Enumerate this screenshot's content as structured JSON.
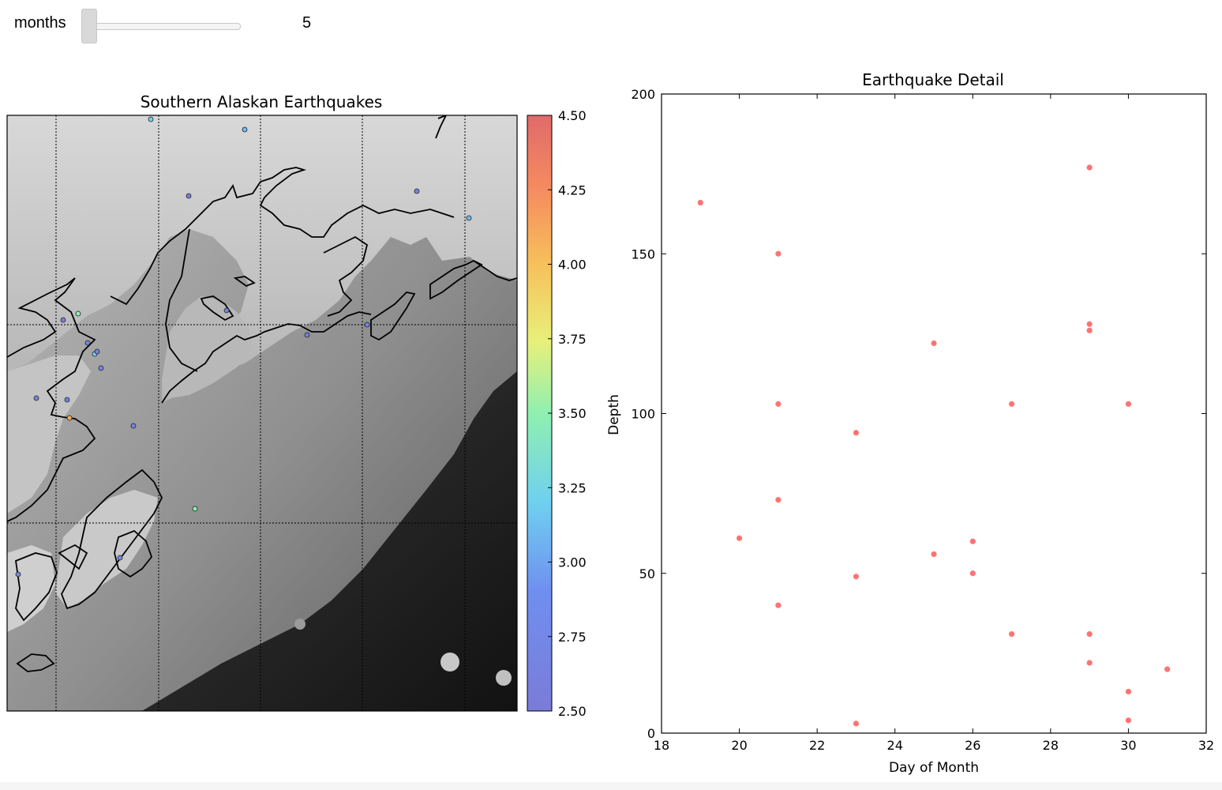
{
  "widget": {
    "label": "months",
    "value": "5",
    "slider_fraction": 0.0
  },
  "colors": {
    "scatter_point": "#ff5a5a",
    "map_land_light": "#d7d7d7",
    "map_sea_dark": "#1c1c1c",
    "coastline": "#000000"
  },
  "map_panel": {
    "title": "Southern Alaskan Earthquakes",
    "colorbar_range": [
      2.5,
      4.5
    ],
    "colorbar_ticks": [
      "4.50",
      "4.25",
      "4.00",
      "3.75",
      "3.50",
      "3.25",
      "3.00",
      "2.75",
      "2.50"
    ],
    "markers": [
      {
        "mag": 3.2
      },
      {
        "mag": 3.1
      },
      {
        "mag": 2.6
      },
      {
        "mag": 2.6
      },
      {
        "mag": 3.1
      },
      {
        "mag": 2.6
      },
      {
        "mag": 3.5
      },
      {
        "mag": 2.7
      },
      {
        "mag": 3.2
      },
      {
        "mag": 2.6
      },
      {
        "mag": 2.7
      },
      {
        "mag": 2.7
      },
      {
        "mag": 2.6
      },
      {
        "mag": 2.6
      },
      {
        "mag": 2.7
      },
      {
        "mag": 2.6
      },
      {
        "mag": 4.1
      },
      {
        "mag": 2.6
      },
      {
        "mag": 3.5
      },
      {
        "mag": 2.8
      },
      {
        "mag": 2.7
      }
    ]
  },
  "chart_data": {
    "type": "scatter",
    "title": "Earthquake Detail",
    "xlabel": "Day of Month",
    "ylabel": "Depth",
    "xlim": [
      18,
      32
    ],
    "ylim": [
      0,
      200
    ],
    "xticks": [
      "18",
      "20",
      "22",
      "24",
      "26",
      "28",
      "30",
      "32"
    ],
    "yticks": [
      "0",
      "50",
      "100",
      "150",
      "200"
    ],
    "grid": false,
    "points": [
      {
        "x": 19,
        "y": 166
      },
      {
        "x": 20,
        "y": 61
      },
      {
        "x": 21,
        "y": 150
      },
      {
        "x": 21,
        "y": 103
      },
      {
        "x": 21,
        "y": 73
      },
      {
        "x": 21,
        "y": 40
      },
      {
        "x": 23,
        "y": 94
      },
      {
        "x": 23,
        "y": 49
      },
      {
        "x": 23,
        "y": 3
      },
      {
        "x": 25,
        "y": 122
      },
      {
        "x": 25,
        "y": 56
      },
      {
        "x": 26,
        "y": 60
      },
      {
        "x": 26,
        "y": 50
      },
      {
        "x": 27,
        "y": 103
      },
      {
        "x": 27,
        "y": 31
      },
      {
        "x": 29,
        "y": 177
      },
      {
        "x": 29,
        "y": 128
      },
      {
        "x": 29,
        "y": 126
      },
      {
        "x": 29,
        "y": 31
      },
      {
        "x": 29,
        "y": 22
      },
      {
        "x": 30,
        "y": 103
      },
      {
        "x": 30,
        "y": 13
      },
      {
        "x": 30,
        "y": 4
      },
      {
        "x": 31,
        "y": 20
      }
    ]
  }
}
